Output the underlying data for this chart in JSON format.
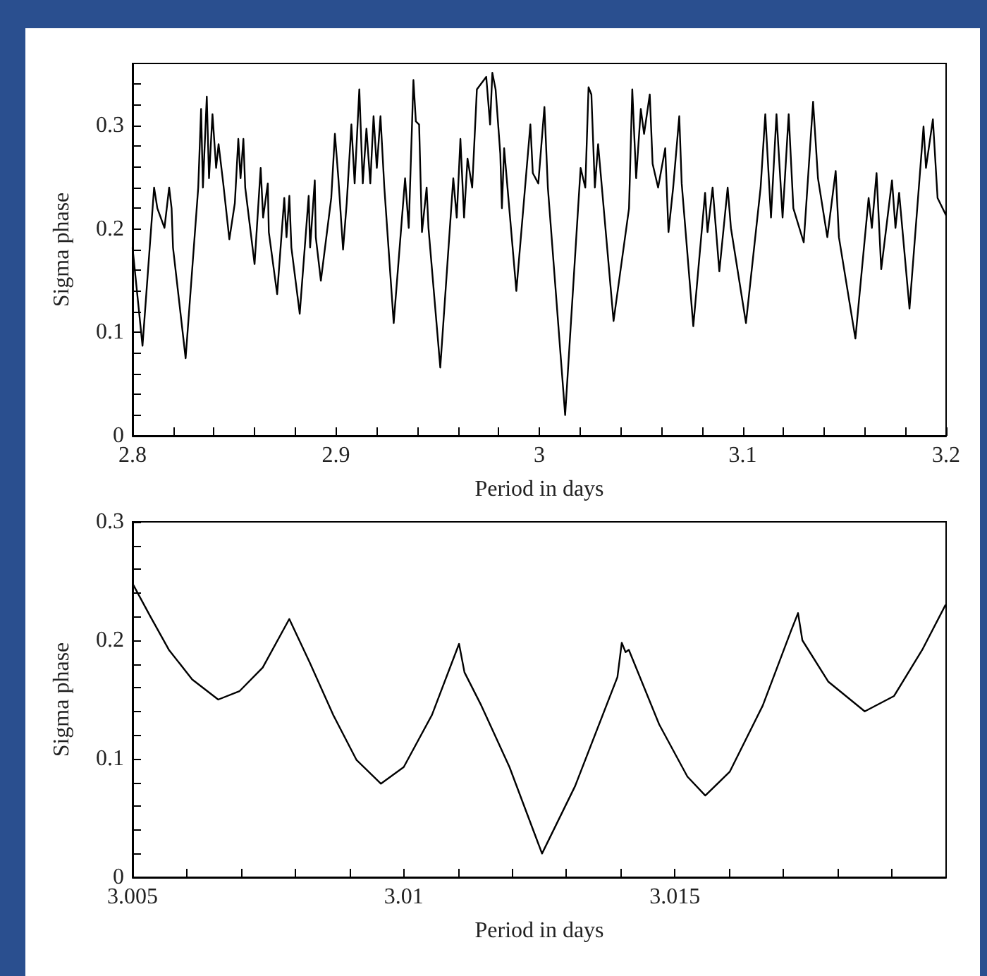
{
  "chart_data": [
    {
      "type": "line",
      "xlabel": "Period in days",
      "ylabel": "Sigma phase",
      "color": "#000000",
      "xlim": [
        2.8,
        3.2
      ],
      "ylim": [
        0,
        0.36
      ],
      "xticks": [
        2.8,
        {
          "value": 2.82,
          "label": null
        },
        {
          "value": 2.84,
          "label": null
        },
        {
          "value": 2.86,
          "label": null
        },
        {
          "value": 2.88,
          "label": null
        },
        2.9,
        {
          "value": 2.92,
          "label": null
        },
        {
          "value": 2.94,
          "label": null
        },
        {
          "value": 2.96,
          "label": null
        },
        {
          "value": 2.98,
          "label": null
        },
        3,
        {
          "value": 3.02,
          "label": null
        },
        {
          "value": 3.04,
          "label": null
        },
        {
          "value": 3.06,
          "label": null
        },
        {
          "value": 3.08,
          "label": null
        },
        3.1,
        {
          "value": 3.12,
          "label": null
        },
        {
          "value": 3.14,
          "label": null
        },
        {
          "value": 3.16,
          "label": null
        },
        {
          "value": 3.18,
          "label": null
        },
        3.2
      ],
      "yticks": [
        0,
        {
          "value": 0.02,
          "label": null
        },
        {
          "value": 0.04,
          "label": null
        },
        {
          "value": 0.06,
          "label": null
        },
        {
          "value": 0.08,
          "label": null
        },
        0.1,
        {
          "value": 0.12,
          "label": null
        },
        {
          "value": 0.14,
          "label": null
        },
        {
          "value": 0.16,
          "label": null
        },
        {
          "value": 0.18,
          "label": null
        },
        0.2,
        {
          "value": 0.22,
          "label": null
        },
        {
          "value": 0.24,
          "label": null
        },
        {
          "value": 0.26,
          "label": null
        },
        {
          "value": 0.28,
          "label": null
        },
        0.3,
        {
          "value": 0.32,
          "label": null
        },
        {
          "value": 0.34,
          "label": null
        }
      ],
      "x": [
        2.8,
        2.8049,
        2.8106,
        2.8122,
        2.8157,
        2.818,
        2.8192,
        2.8199,
        2.8261,
        2.8323,
        2.8337,
        2.8346,
        2.8365,
        2.8376,
        2.8393,
        2.8411,
        2.8423,
        2.8446,
        2.8476,
        2.8503,
        2.852,
        2.8531,
        2.8545,
        2.8554,
        2.86,
        2.863,
        2.8642,
        2.8665,
        2.867,
        2.8711,
        2.8746,
        2.8757,
        2.8771,
        2.8781,
        2.8822,
        2.8866,
        2.8873,
        2.8896,
        2.8901,
        2.8926,
        2.8977,
        2.8995,
        2.9012,
        2.9035,
        2.9053,
        2.9076,
        2.9092,
        2.9115,
        2.9132,
        2.915,
        2.9169,
        2.9185,
        2.9201,
        2.9219,
        2.9238,
        2.9284,
        2.934,
        2.9358,
        2.9381,
        2.9393,
        2.9409,
        2.9423,
        2.9446,
        2.9455,
        2.9513,
        2.9577,
        2.9594,
        2.9612,
        2.963,
        2.9647,
        2.967,
        2.9693,
        2.9739,
        2.9758,
        2.9769,
        2.9785,
        2.9808,
        2.9816,
        2.9827,
        2.9887,
        2.9956,
        2.9968,
        2.9995,
        3.0025,
        3.0042,
        3.0127,
        3.0203,
        3.0226,
        3.0242,
        3.0256,
        3.0273,
        3.0289,
        3.0365,
        3.0441,
        3.0457,
        3.0476,
        3.0499,
        3.0515,
        3.0543,
        3.0557,
        3.0584,
        3.0619,
        3.0635,
        3.0658,
        3.0688,
        3.07,
        3.0757,
        3.0815,
        3.0827,
        3.0852,
        3.0885,
        3.0926,
        3.0942,
        3.1016,
        3.1088,
        3.1111,
        3.1139,
        3.1166,
        3.1196,
        3.1226,
        3.1249,
        3.13,
        3.1346,
        3.137,
        3.1416,
        3.1457,
        3.1473,
        3.1554,
        3.1619,
        3.1635,
        3.1658,
        3.1681,
        3.1734,
        3.1751,
        3.1769,
        3.182,
        3.1889,
        3.1901,
        3.1935,
        3.1958,
        3.2
      ],
      "values": [
        0.182,
        0.087,
        0.24,
        0.22,
        0.201,
        0.24,
        0.22,
        0.182,
        0.075,
        0.24,
        0.316,
        0.24,
        0.328,
        0.249,
        0.311,
        0.259,
        0.282,
        0.244,
        0.19,
        0.225,
        0.287,
        0.249,
        0.287,
        0.24,
        0.166,
        0.259,
        0.211,
        0.244,
        0.197,
        0.137,
        0.23,
        0.192,
        0.232,
        0.182,
        0.118,
        0.232,
        0.182,
        0.247,
        0.192,
        0.15,
        0.23,
        0.292,
        0.249,
        0.18,
        0.225,
        0.301,
        0.244,
        0.335,
        0.244,
        0.297,
        0.244,
        0.309,
        0.259,
        0.309,
        0.24,
        0.109,
        0.249,
        0.201,
        0.344,
        0.304,
        0.301,
        0.197,
        0.24,
        0.201,
        0.066,
        0.249,
        0.211,
        0.287,
        0.211,
        0.268,
        0.24,
        0.335,
        0.347,
        0.301,
        0.351,
        0.335,
        0.273,
        0.22,
        0.278,
        0.14,
        0.301,
        0.254,
        0.244,
        0.318,
        0.24,
        0.02,
        0.259,
        0.24,
        0.337,
        0.33,
        0.24,
        0.282,
        0.111,
        0.22,
        0.335,
        0.249,
        0.316,
        0.292,
        0.33,
        0.263,
        0.24,
        0.278,
        0.197,
        0.24,
        0.309,
        0.244,
        0.106,
        0.235,
        0.197,
        0.24,
        0.159,
        0.24,
        0.201,
        0.109,
        0.24,
        0.311,
        0.211,
        0.311,
        0.211,
        0.311,
        0.22,
        0.187,
        0.323,
        0.249,
        0.192,
        0.256,
        0.192,
        0.094,
        0.23,
        0.201,
        0.254,
        0.161,
        0.247,
        0.201,
        0.235,
        0.123,
        0.299,
        0.259,
        0.306,
        0.23,
        0.213
      ]
    },
    {
      "type": "line",
      "xlabel": "Period in days",
      "ylabel": "Sigma phase",
      "color": "#000000",
      "xlim": [
        3.005,
        3.02
      ],
      "ylim": [
        0,
        0.3
      ],
      "xticks": [
        3.005,
        {
          "value": 3.006,
          "label": null
        },
        {
          "value": 3.007,
          "label": null
        },
        {
          "value": 3.008,
          "label": null
        },
        {
          "value": 3.009,
          "label": null
        },
        3.01,
        {
          "value": 3.011,
          "label": null
        },
        {
          "value": 3.012,
          "label": null
        },
        {
          "value": 3.013,
          "label": null
        },
        {
          "value": 3.014,
          "label": null
        },
        3.015,
        {
          "value": 3.016,
          "label": null
        },
        {
          "value": 3.017,
          "label": null
        },
        {
          "value": 3.018,
          "label": null
        },
        {
          "value": 3.019,
          "label": null
        }
      ],
      "yticks": [
        0,
        {
          "value": 0.02,
          "label": null
        },
        {
          "value": 0.04,
          "label": null
        },
        {
          "value": 0.06,
          "label": null
        },
        {
          "value": 0.08,
          "label": null
        },
        0.1,
        {
          "value": 0.12,
          "label": null
        },
        {
          "value": 0.14,
          "label": null
        },
        {
          "value": 0.16,
          "label": null
        },
        {
          "value": 0.18,
          "label": null
        },
        0.2,
        {
          "value": 0.22,
          "label": null
        },
        {
          "value": 0.24,
          "label": null
        },
        {
          "value": 0.26,
          "label": null
        },
        {
          "value": 0.28,
          "label": null
        },
        0.3
      ],
      "x": [
        3.005,
        3.00533,
        3.00567,
        3.0061,
        3.00658,
        3.00697,
        3.0074,
        3.00789,
        3.00827,
        3.0087,
        3.00913,
        3.00958,
        3.01,
        3.01052,
        3.01102,
        3.01112,
        3.01143,
        3.01195,
        3.01255,
        3.01316,
        3.01394,
        3.01402,
        3.01409,
        3.01415,
        3.01471,
        3.01523,
        3.01556,
        3.01601,
        3.01662,
        3.01714,
        3.01727,
        3.01735,
        3.01783,
        3.0185,
        3.01904,
        3.01956,
        3.01999
      ],
      "values": [
        0.248,
        0.22,
        0.192,
        0.167,
        0.15,
        0.157,
        0.177,
        0.218,
        0.181,
        0.137,
        0.099,
        0.079,
        0.093,
        0.137,
        0.197,
        0.173,
        0.145,
        0.093,
        0.02,
        0.077,
        0.169,
        0.198,
        0.19,
        0.192,
        0.129,
        0.085,
        0.069,
        0.089,
        0.145,
        0.208,
        0.223,
        0.2,
        0.165,
        0.14,
        0.153,
        0.192,
        0.23
      ]
    }
  ]
}
